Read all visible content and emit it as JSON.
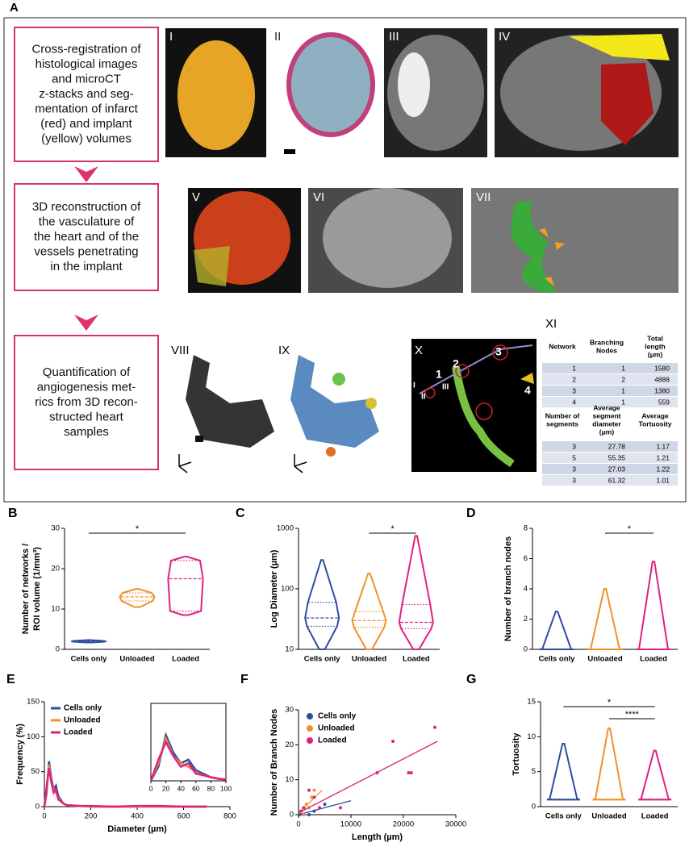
{
  "figure_label": "A",
  "steps": [
    {
      "lines": [
        "Cross-registration of",
        "histological images",
        "and microCT",
        "z-stacks and seg-",
        "mentation of infarct",
        "(red) and implant",
        "(yellow) volumes"
      ]
    },
    {
      "lines": [
        "3D reconstruction of",
        "the vasculature of",
        "the heart and of the",
        "vessels penetrating",
        "in the implant"
      ]
    },
    {
      "lines": [
        "Quantification of",
        "angiogenesis met-",
        "rics from 3D recon-",
        "structed heart",
        "samples"
      ]
    }
  ],
  "image_labels": [
    "I",
    "II",
    "III",
    "IV",
    "V",
    "VI",
    "VII",
    "VIII",
    "IX",
    "X"
  ],
  "x_annotations": [
    "1",
    "2",
    "3",
    "4",
    "I",
    "II",
    "III"
  ],
  "table": {
    "label": "XI",
    "header1": [
      [
        "Network"
      ],
      [
        "Branching",
        "Nodes"
      ],
      [
        "Total",
        "length",
        "(μm)"
      ]
    ],
    "rows1": [
      [
        1,
        1,
        1580
      ],
      [
        2,
        2,
        4888
      ],
      [
        3,
        1,
        1380
      ],
      [
        4,
        1,
        559
      ]
    ],
    "header2": [
      [
        "Number of",
        "segments"
      ],
      [
        "Average",
        "segment",
        "diameter",
        "(μm)"
      ],
      [
        "Average",
        "Tortuosity"
      ]
    ],
    "rows2": [
      [
        3,
        27.78,
        1.17
      ],
      [
        5,
        55.35,
        1.21
      ],
      [
        3,
        27.03,
        1.22
      ],
      [
        3,
        61.32,
        1.01
      ]
    ]
  },
  "chart_data": [
    {
      "type": "violin",
      "label": "B",
      "ylabel": [
        "Number of networks /",
        "ROI volume (1/mm³)"
      ],
      "ylim": [
        0,
        30
      ],
      "yticks": [
        0,
        10,
        20,
        30
      ],
      "series": [
        {
          "name": "Cells only",
          "color": "#2e4d9e",
          "min": 1.7,
          "q1": 1.9,
          "median": 2,
          "q3": 2.1,
          "max": 2.3
        },
        {
          "name": "Unloaded",
          "color": "#f0912a",
          "min": 10.5,
          "q1": 12,
          "median": 13,
          "q3": 14,
          "max": 15
        },
        {
          "name": "Loaded",
          "color": "#e0207f",
          "min": 8.5,
          "q1": 9.5,
          "median": 17.5,
          "q3": 22,
          "max": 23
        }
      ],
      "significance": [
        {
          "label": "*",
          "between": [
            "Cells only",
            "Loaded"
          ]
        }
      ]
    },
    {
      "type": "violin",
      "label": "C",
      "ylabel": [
        "Log Diameter (µm)"
      ],
      "log_scale": true,
      "ylim": [
        10,
        1000
      ],
      "yticks": [
        10,
        100,
        1000
      ],
      "series": [
        {
          "name": "Cells only",
          "color": "#2e4d9e",
          "min": 10,
          "q1": 24,
          "median": 33,
          "q3": 60,
          "max": 300
        },
        {
          "name": "Unloaded",
          "color": "#f0912a",
          "min": 10,
          "q1": 23,
          "median": 30,
          "q3": 42,
          "max": 180
        },
        {
          "name": "Loaded",
          "color": "#e0207f",
          "min": 10,
          "q1": 22,
          "median": 28,
          "q3": 55,
          "max": 750
        }
      ],
      "significance": [
        {
          "label": "*",
          "between": [
            "Unloaded",
            "Loaded"
          ]
        }
      ]
    },
    {
      "type": "violin",
      "label": "D",
      "ylabel": [
        "Number of branch nodes"
      ],
      "ylim": [
        0,
        8
      ],
      "yticks": [
        0,
        2,
        4,
        6,
        8
      ],
      "series": [
        {
          "name": "Cells only",
          "color": "#2e4d9e",
          "min": 0,
          "q1": 0,
          "median": 0,
          "q3": 0,
          "max": 2.5
        },
        {
          "name": "Unloaded",
          "color": "#f0912a",
          "min": 0,
          "q1": 0,
          "median": 0,
          "q3": 0,
          "max": 4
        },
        {
          "name": "Loaded",
          "color": "#e0207f",
          "min": 0,
          "q1": 0,
          "median": 0,
          "q3": 0,
          "max": 5.8
        }
      ],
      "significance": [
        {
          "label": "*",
          "between": [
            "Unloaded",
            "Loaded"
          ]
        }
      ]
    },
    {
      "type": "line",
      "label": "E",
      "ylabel": [
        "Frequency (%)"
      ],
      "xlabel": "Diameter (µm)",
      "xlim": [
        0,
        800
      ],
      "xticks": [
        0,
        200,
        400,
        600,
        800
      ],
      "ylim": [
        0,
        150
      ],
      "yticks": [
        0,
        50,
        100,
        150
      ],
      "legend": "upper left",
      "x": [
        0,
        10,
        20,
        30,
        40,
        50,
        60,
        70,
        80,
        90,
        100,
        150,
        200,
        300,
        400,
        500,
        600,
        700
      ],
      "series": [
        {
          "name": "Cells only",
          "color": "#2e4d9e",
          "values": [
            0,
            20,
            65,
            40,
            25,
            30,
            15,
            10,
            5,
            3,
            2,
            1,
            0,
            0,
            0,
            0,
            0,
            0
          ]
        },
        {
          "name": "Unloaded",
          "color": "#f0912a",
          "values": [
            0,
            25,
            60,
            35,
            25,
            20,
            12,
            8,
            5,
            3,
            2,
            1,
            0,
            0,
            0,
            0,
            0,
            0
          ]
        },
        {
          "name": "Loaded",
          "color": "#e0207f",
          "values": [
            0,
            30,
            55,
            35,
            20,
            25,
            10,
            8,
            5,
            3,
            2,
            1,
            1,
            0,
            1,
            1,
            0,
            0
          ]
        }
      ],
      "inset": {
        "xlim": [
          0,
          100
        ],
        "xticks": [
          0,
          20,
          40,
          60,
          80,
          100
        ],
        "ylim": [
          0,
          110
        ]
      }
    },
    {
      "type": "scatter",
      "label": "F",
      "ylabel": [
        "Number of Branch Nodes"
      ],
      "xlabel": "Length (µm)",
      "xlim": [
        0,
        30000
      ],
      "xticks": [
        0,
        10000,
        20000,
        30000
      ],
      "ylim": [
        0,
        30
      ],
      "yticks": [
        0,
        10,
        20,
        30
      ],
      "legend": "upper left",
      "series": [
        {
          "name": "Cells only",
          "color": "#2e4d9e",
          "x": [
            200,
            500,
            1000,
            2000,
            3000,
            5000
          ],
          "values": [
            0,
            1,
            2,
            0,
            1,
            3
          ],
          "fit": {
            "x": [
              0,
              10000
            ],
            "values": [
              0,
              4
            ]
          }
        },
        {
          "name": "Unloaded",
          "color": "#f0912a",
          "x": [
            500,
            1000,
            1500,
            2000,
            2500,
            3000
          ],
          "values": [
            1,
            0,
            3,
            2,
            5,
            7
          ],
          "fit": {
            "x": [
              0,
              4500
            ],
            "values": [
              0.5,
              7
            ]
          }
        },
        {
          "name": "Loaded",
          "color": "#e0207f",
          "x": [
            500,
            1000,
            2000,
            3000,
            4000,
            8000,
            15000,
            18000,
            21000,
            21500,
            26000
          ],
          "values": [
            1,
            2,
            7,
            5,
            2,
            2,
            12,
            21,
            12,
            12,
            25
          ],
          "fit": {
            "x": [
              0,
              26500
            ],
            "values": [
              0.5,
              21
            ]
          }
        }
      ]
    },
    {
      "type": "violin",
      "label": "G",
      "ylabel": [
        "Tortuosity"
      ],
      "ylim": [
        0,
        15
      ],
      "yticks": [
        0,
        5,
        10,
        15
      ],
      "series": [
        {
          "name": "Cells only",
          "color": "#2e4d9e",
          "min": 1,
          "q1": 1,
          "median": 1,
          "q3": 1.1,
          "max": 9
        },
        {
          "name": "Unloaded",
          "color": "#f0912a",
          "min": 1,
          "q1": 1,
          "median": 1,
          "q3": 1.1,
          "max": 11.2
        },
        {
          "name": "Loaded",
          "color": "#e0207f",
          "min": 1,
          "q1": 1,
          "median": 1,
          "q3": 1.1,
          "max": 8
        }
      ],
      "significance": [
        {
          "label": "*",
          "between": [
            "Cells only",
            "Loaded"
          ]
        },
        {
          "label": "****",
          "between": [
            "Unloaded",
            "Loaded"
          ]
        }
      ]
    }
  ]
}
